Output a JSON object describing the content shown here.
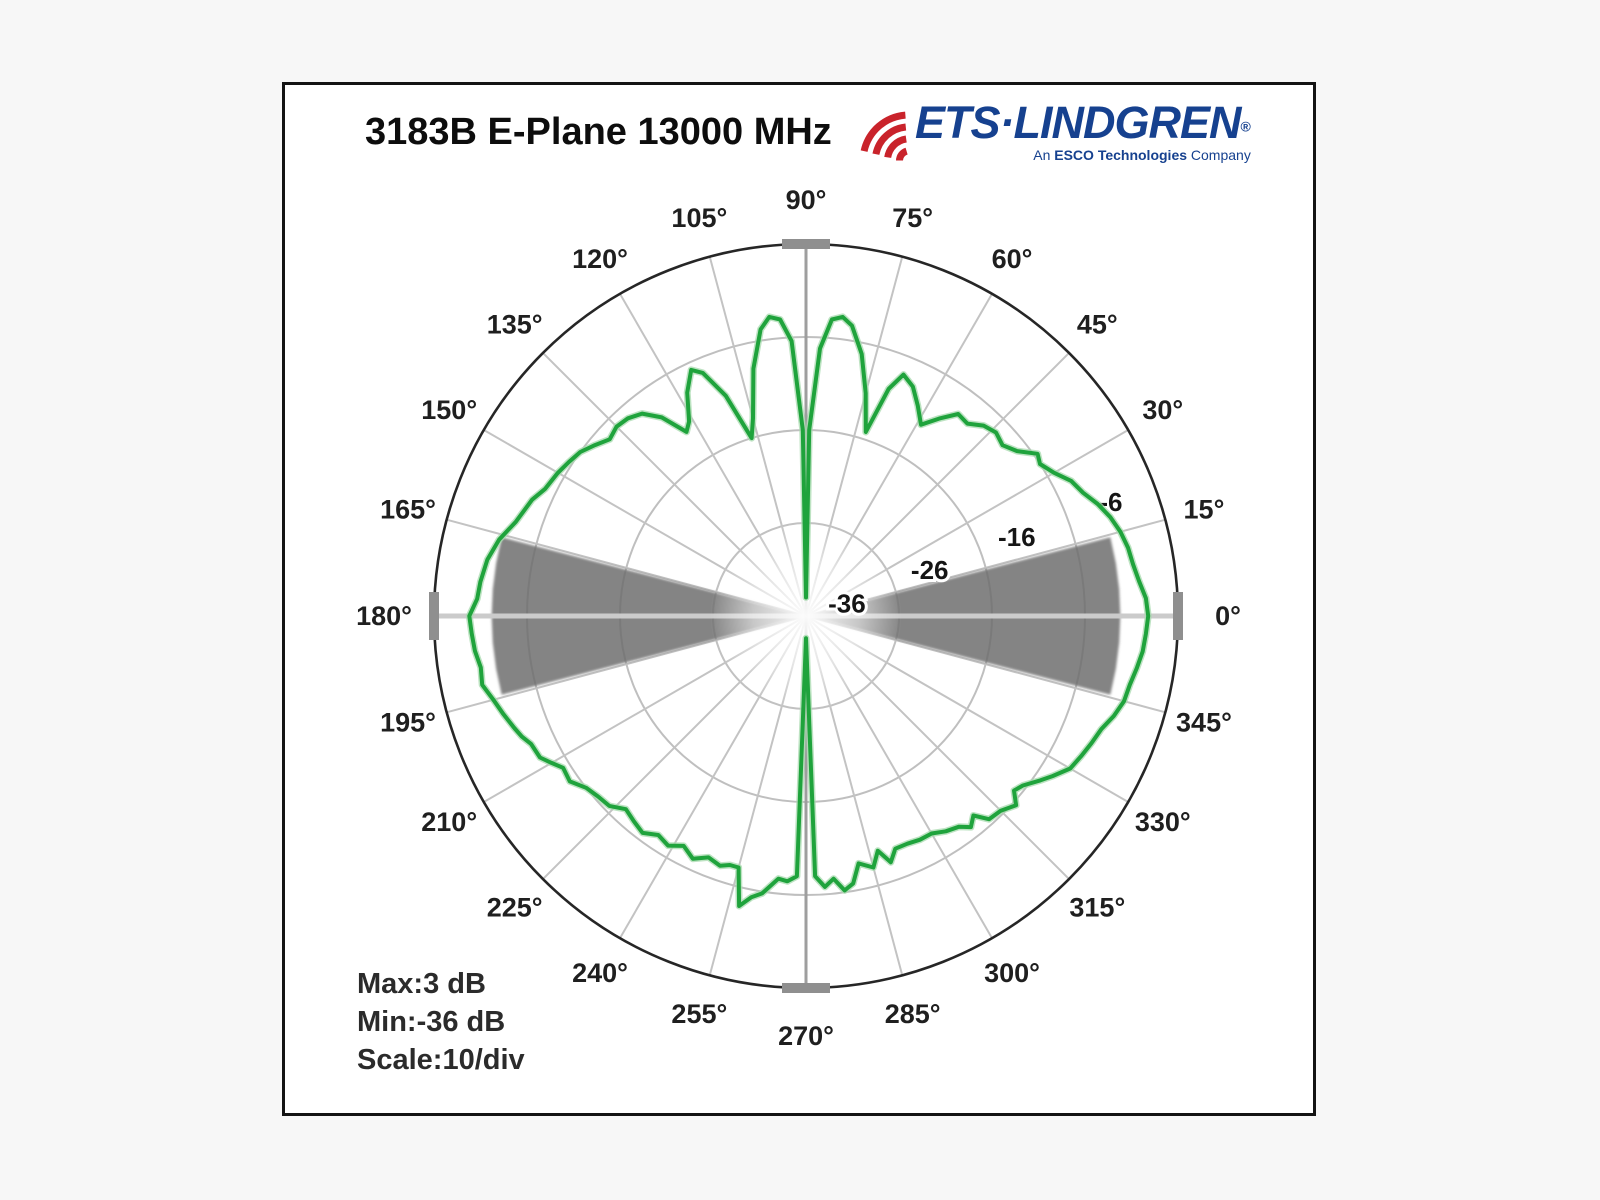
{
  "header": {
    "title": "3183B E-Plane 13000 MHz"
  },
  "logo": {
    "wordmark": "ETS·LINDGREN",
    "registered": "®",
    "tagline_pre": "An ",
    "tagline_bold": "ESCO Technologies",
    "tagline_post": " Company",
    "blue": "#16418f",
    "red": "#c9232b",
    "icon": "radio-waves-icon"
  },
  "footer": {
    "max": "Max:3 dB",
    "min": "Min:-36 dB",
    "scale": "Scale:10/div"
  },
  "chart_data": {
    "type": "line",
    "subtype": "polar-radiation-pattern",
    "title": "3183B E-Plane 13000 MHz",
    "grid": "on",
    "angle_ticks": [
      {
        "deg": 0,
        "label": "0°"
      },
      {
        "deg": 15,
        "label": "15°"
      },
      {
        "deg": 30,
        "label": "30°"
      },
      {
        "deg": 45,
        "label": "45°"
      },
      {
        "deg": 60,
        "label": "60°"
      },
      {
        "deg": 75,
        "label": "75°"
      },
      {
        "deg": 90,
        "label": "90°"
      },
      {
        "deg": 105,
        "label": "105°"
      },
      {
        "deg": 120,
        "label": "120°"
      },
      {
        "deg": 135,
        "label": "135°"
      },
      {
        "deg": 150,
        "label": "150°"
      },
      {
        "deg": 165,
        "label": "165°"
      },
      {
        "deg": 180,
        "label": "180°"
      },
      {
        "deg": 195,
        "label": "195°"
      },
      {
        "deg": 210,
        "label": "210°"
      },
      {
        "deg": 225,
        "label": "225°"
      },
      {
        "deg": 240,
        "label": "240°"
      },
      {
        "deg": 255,
        "label": "255°"
      },
      {
        "deg": 270,
        "label": "270°"
      },
      {
        "deg": 285,
        "label": "285°"
      },
      {
        "deg": 300,
        "label": "300°"
      },
      {
        "deg": 315,
        "label": "315°"
      },
      {
        "deg": 330,
        "label": "330°"
      },
      {
        "deg": 345,
        "label": "345°"
      }
    ],
    "radial_axis": {
      "min_db": -36,
      "max_db": 4,
      "db_per_division": 10,
      "ring_dbs": [
        -6,
        -16,
        -26
      ],
      "ring_labels": [
        "-6",
        "-16",
        "-26",
        "-36"
      ]
    },
    "beam_sectors": {
      "directions_deg": [
        0,
        180
      ],
      "half_angle_deg": 14.5,
      "outer_db": -2.2,
      "color": "#6f6f6f"
    },
    "series": [
      {
        "name": "E-plane pattern",
        "color": "#1fa33c",
        "halo_color": "#a7d9ae",
        "points_deg_db": [
          [
            0,
            0.8
          ],
          [
            3,
            0.6
          ],
          [
            6,
            0.0
          ],
          [
            9,
            -0.4
          ],
          [
            12,
            -0.6
          ],
          [
            15,
            -1.0
          ],
          [
            18,
            -1.6
          ],
          [
            21,
            -2.4
          ],
          [
            24,
            -3.4
          ],
          [
            27,
            -4.0
          ],
          [
            30,
            -5.2
          ],
          [
            33,
            -6.0
          ],
          [
            35,
            -5.6
          ],
          [
            38,
            -7.2
          ],
          [
            41,
            -8.0
          ],
          [
            44,
            -7.6
          ],
          [
            47,
            -8.0
          ],
          [
            50,
            -9.0
          ],
          [
            53,
            -8.8
          ],
          [
            56,
            -10.4
          ],
          [
            59,
            -12.0
          ],
          [
            62,
            -10.4
          ],
          [
            65,
            -8.8
          ],
          [
            68,
            -8.0
          ],
          [
            70,
            -10.0
          ],
          [
            72,
            -15.2
          ],
          [
            75,
            -11.2
          ],
          [
            78,
            -7.2
          ],
          [
            81,
            -4.4
          ],
          [
            83,
            -3.6
          ],
          [
            85,
            -4.0
          ],
          [
            87,
            -7.2
          ],
          [
            89,
            -16.0
          ],
          [
            90,
            -34.0
          ],
          [
            91,
            -16.0
          ],
          [
            93,
            -6.4
          ],
          [
            95,
            -4.0
          ],
          [
            97,
            -3.6
          ],
          [
            99,
            -4.8
          ],
          [
            102,
            -8.8
          ],
          [
            105,
            -14.0
          ],
          [
            107,
            -16.0
          ],
          [
            110,
            -10.8
          ],
          [
            113,
            -7.6
          ],
          [
            115,
            -6.8
          ],
          [
            118,
            -8.8
          ],
          [
            121,
            -11.6
          ],
          [
            123,
            -12.4
          ],
          [
            126,
            -9.6
          ],
          [
            129,
            -8.0
          ],
          [
            132,
            -7.4
          ],
          [
            135,
            -7.2
          ],
          [
            138,
            -7.6
          ],
          [
            141,
            -6.8
          ],
          [
            144,
            -6.0
          ],
          [
            147,
            -5.6
          ],
          [
            150,
            -5.2
          ],
          [
            154,
            -4.8
          ],
          [
            157,
            -4.0
          ],
          [
            162,
            -3.2
          ],
          [
            166,
            -2.0
          ],
          [
            170,
            -1.2
          ],
          [
            174,
            -0.8
          ],
          [
            177,
            -0.6
          ],
          [
            180,
            0.2
          ],
          [
            183,
            0.0
          ],
          [
            186,
            -0.2
          ],
          [
            189,
            -0.6
          ],
          [
            192,
            -0.4
          ],
          [
            195,
            -1.2
          ],
          [
            198,
            -1.8
          ],
          [
            201,
            -2.4
          ],
          [
            203,
            -2.8
          ],
          [
            205,
            -3.4
          ],
          [
            208,
            -3.6
          ],
          [
            210,
            -4.4
          ],
          [
            212,
            -5.2
          ],
          [
            215,
            -5.0
          ],
          [
            218,
            -6.0
          ],
          [
            221,
            -6.4
          ],
          [
            224,
            -6.6
          ],
          [
            227,
            -7.6
          ],
          [
            230,
            -7.2
          ],
          [
            233,
            -6.8
          ],
          [
            236,
            -7.6
          ],
          [
            239,
            -7.2
          ],
          [
            242,
            -8.0
          ],
          [
            245,
            -7.2
          ],
          [
            248,
            -8.0
          ],
          [
            251,
            -7.6
          ],
          [
            253,
            -8.0
          ],
          [
            255,
            -8.0
          ],
          [
            257,
            -4.0
          ],
          [
            259,
            -5.2
          ],
          [
            261,
            -5.8
          ],
          [
            264,
            -7.6
          ],
          [
            266,
            -7.4
          ],
          [
            268,
            -8.0
          ],
          [
            270,
            -33.6
          ],
          [
            272,
            -8.0
          ],
          [
            274,
            -6.8
          ],
          [
            276,
            -7.6
          ],
          [
            278,
            -6.2
          ],
          [
            280,
            -6.8
          ],
          [
            282,
            -8.8
          ],
          [
            285,
            -8.0
          ],
          [
            287,
            -9.6
          ],
          [
            289,
            -8.0
          ],
          [
            291,
            -9.2
          ],
          [
            294,
            -9.2
          ],
          [
            297,
            -9.0
          ],
          [
            300,
            -9.0
          ],
          [
            303,
            -8.4
          ],
          [
            306,
            -8.0
          ],
          [
            308,
            -7.2
          ],
          [
            310,
            -8.0
          ],
          [
            312,
            -6.6
          ],
          [
            315,
            -6.4
          ],
          [
            318,
            -5.6
          ],
          [
            320,
            -6.8
          ],
          [
            322,
            -6.4
          ],
          [
            325,
            -5.2
          ],
          [
            327,
            -4.4
          ],
          [
            330,
            -3.2
          ],
          [
            333,
            -2.8
          ],
          [
            336,
            -2.4
          ],
          [
            339,
            -2.0
          ],
          [
            342,
            -1.2
          ],
          [
            345,
            -0.6
          ],
          [
            348,
            -0.4
          ],
          [
            351,
            0.0
          ],
          [
            354,
            0.4
          ],
          [
            357,
            0.6
          ]
        ]
      }
    ],
    "annotations": {
      "max": "Max:3 dB",
      "min": "Min:-36 dB",
      "scale": "Scale:10/div"
    },
    "colors": {
      "trace": "#1fa33c",
      "trace_halo": "#a7d9ae",
      "beam_sector": "#6f6f6f",
      "grid_ring": "#bfbfbf",
      "grid_spoke": "#c3c3c3",
      "axis_horizontal": "#cbcbcb",
      "axis_vertical": "#9e9e9e",
      "outer_circle": "#262626",
      "cardinal_tick": "#8f8f8f",
      "angle_label": "#1f1f1f",
      "ring_label": "#151515"
    }
  }
}
